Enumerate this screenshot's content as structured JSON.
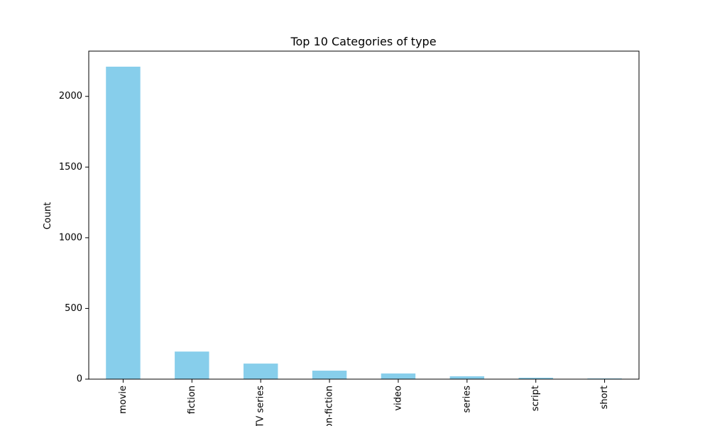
{
  "chart_data": {
    "type": "bar",
    "title": "Top 10 Categories of type",
    "xlabel": "",
    "ylabel": "Count",
    "categories": [
      "movie",
      "fiction",
      "TV series",
      "non-fiction",
      "video",
      "series",
      "script",
      "short"
    ],
    "values": [
      2210,
      195,
      110,
      60,
      40,
      20,
      10,
      5
    ],
    "ylim": [
      0,
      2320
    ],
    "yticks": [
      0,
      500,
      1000,
      1500,
      2000
    ],
    "grid": false,
    "bar_color": "#87ceeb"
  }
}
